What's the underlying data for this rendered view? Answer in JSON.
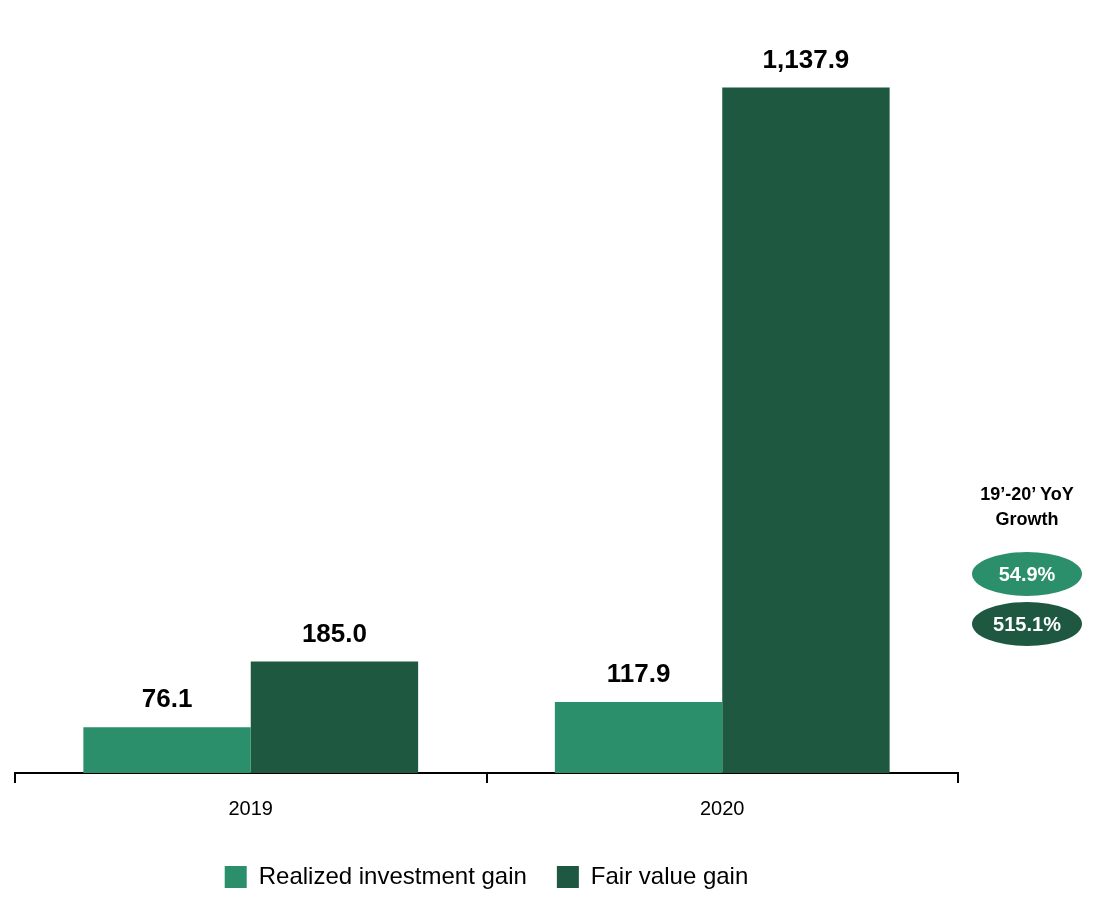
{
  "chart_data": {
    "type": "bar",
    "categories": [
      "2019",
      "2020"
    ],
    "series": [
      {
        "name": "Realized investment gain",
        "color": "#2a8f6a",
        "values": [
          76.1,
          117.9
        ],
        "value_labels": [
          "76.1",
          "117.9"
        ]
      },
      {
        "name": "Fair value gain",
        "color": "#1e5840",
        "values": [
          185.0,
          1137.9
        ],
        "value_labels": [
          "185.0",
          "1,137.9"
        ]
      }
    ],
    "legend": "bottom",
    "grid": false,
    "annotations": [
      "19’-20’ YoY Growth",
      "54.9%",
      "515.1%"
    ]
  }
}
